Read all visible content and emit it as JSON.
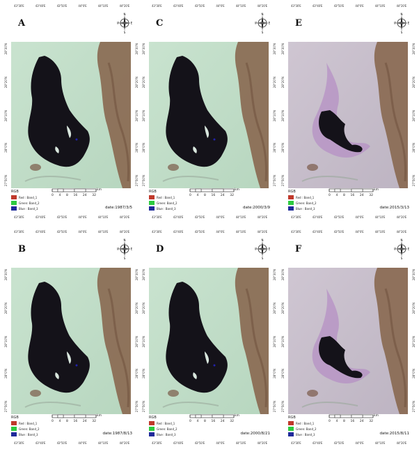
{
  "panels": [
    {
      "letter": "A",
      "date": "date:1987/3/5",
      "tone": "green"
    },
    {
      "letter": "C",
      "date": "date:2000/3/9",
      "tone": "green"
    },
    {
      "letter": "E",
      "date": "date:2015/3/13",
      "tone": "purple"
    },
    {
      "letter": "B",
      "date": "date:1987/8/13",
      "tone": "green"
    },
    {
      "letter": "D",
      "date": "date:2000/8/21",
      "tone": "green"
    },
    {
      "letter": "F",
      "date": "date:2015/8/11",
      "tone": "purple"
    }
  ],
  "legend": {
    "title": "RGB",
    "items": [
      {
        "label": "Red : Band_1",
        "color": "#c0392b"
      },
      {
        "label": "Green: Band_2",
        "color": "#2ecc40"
      },
      {
        "label": "Blue : Band_3",
        "color": "#1f2a9a"
      }
    ]
  },
  "scale": {
    "ticks": [
      "0",
      "4",
      "8",
      "16",
      "24",
      "32"
    ],
    "unit": "km"
  },
  "compass": {
    "north": "N",
    "south": "S",
    "east": "E",
    "west": "W"
  },
  "tick_labels": [
    "43°30'E",
    "43°40'E",
    "43°50'E",
    "44°0'E",
    "44°10'E",
    "44°20'E"
  ],
  "lat_labels": [
    "28°30'N",
    "28°20'N",
    "28°10'N",
    "28°0'N",
    "27°50'N"
  ],
  "colors": {
    "green_land": "#c9e3cf",
    "purple_land": "#cfc6d2",
    "desert": "#8a6a52",
    "water": "#141219"
  }
}
